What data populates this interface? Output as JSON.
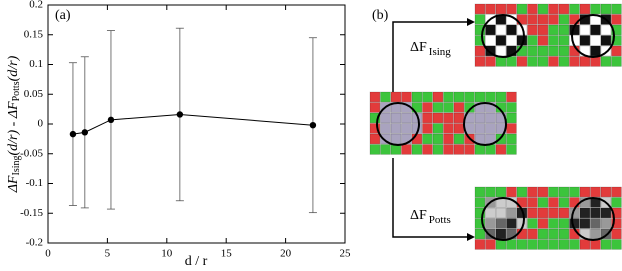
{
  "chart_data": {
    "type": "errorbar",
    "annotation": "(a)",
    "xlabel": "d / r",
    "ylabel": [
      "ΔF",
      "Ising",
      "(d/r) - ΔF",
      "Potts",
      "(d/r)"
    ],
    "x": [
      2.1,
      3.1,
      5.3,
      11.1,
      22.3
    ],
    "values": [
      -0.017,
      -0.014,
      0.007,
      0.016,
      -0.002
    ],
    "errors": [
      0.12,
      0.127,
      0.15,
      0.145,
      0.147
    ],
    "color": "#000000",
    "xlim": [
      0,
      25
    ],
    "xticks": [
      0,
      5,
      10,
      15,
      20,
      25
    ],
    "ylim": [
      -0.2,
      0.2
    ],
    "yticks": [
      -0.2,
      -0.15,
      -0.1,
      -0.05,
      0,
      0.05,
      0.1,
      0.15,
      0.2
    ]
  },
  "diagram": {
    "label": "(b)",
    "ising_label": [
      "ΔF",
      "Ising"
    ],
    "potts_label": [
      "ΔF",
      "Potts"
    ]
  }
}
